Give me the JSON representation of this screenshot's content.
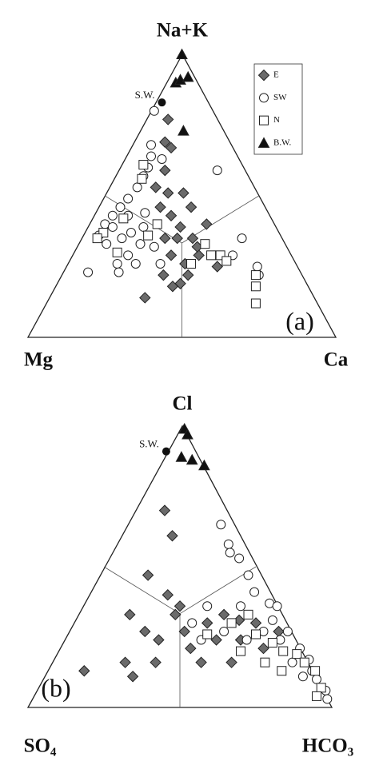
{
  "chart_data": [
    {
      "type": "ternary",
      "top_label": "Na+K",
      "left_label": "Mg",
      "right_label": "Ca",
      "panel_label": "(a)",
      "legend": "top-right",
      "annotations": [
        {
          "text": "S.W.",
          "top": 83,
          "right": 2
        }
      ],
      "series": [
        {
          "name": "E",
          "marker": "diamond",
          "color": "#6b6b6b",
          "top": [
            77,
            69,
            67,
            59,
            51,
            46,
            43,
            39,
            35,
            35,
            29,
            26,
            22,
            19,
            18,
            14,
            46,
            40,
            25,
            29,
            51,
            53,
            35,
            22,
            32
          ],
          "right": [
            7,
            10,
            13,
            15,
            20,
            20,
            25,
            30,
            36,
            27,
            32,
            38,
            33,
            40,
            38,
            31,
            30,
            38,
            49,
            41,
            25,
            15,
            31,
            41,
            39
          ]
        },
        {
          "name": "SW",
          "marker": "circle",
          "color": "#ffffff",
          "top": [
            68,
            64,
            60,
            57,
            53,
            49,
            46,
            43,
            40,
            36,
            33,
            35,
            37,
            33,
            29,
            26,
            23,
            23,
            26,
            32,
            26,
            44,
            43,
            63,
            59,
            35,
            29,
            25,
            22,
            80,
            39,
            39
          ],
          "right": [
            6,
            8,
            9,
            9,
            9,
            8,
            7,
            6,
            5,
            5,
            9,
            13,
            15,
            20,
            18,
            16,
            8,
            18,
            22,
            25,
            30,
            16,
            11,
            12,
            32,
            52,
            52,
            62,
            64,
            1,
            18,
            8
          ]
        },
        {
          "name": "N",
          "marker": "square",
          "color": "#ffffff",
          "top": [
            61,
            56,
            42,
            37,
            35,
            30,
            36,
            26,
            33,
            29,
            29,
            27,
            22,
            18,
            12,
            40
          ],
          "right": [
            7,
            9,
            10,
            6,
            5,
            14,
            21,
            40,
            41,
            45,
            48,
            51,
            63,
            65,
            68,
            22
          ]
        },
        {
          "name": "B.W.",
          "marker": "triangle",
          "color": "#111111",
          "top": [
            100,
            90,
            91,
            92,
            73
          ],
          "right": [
            0,
            3,
            4,
            6,
            14
          ]
        }
      ]
    },
    {
      "type": "ternary",
      "top_label": "Cl",
      "left_label": "SO₄",
      "right_label": "HCO₃",
      "panel_label": "(b)",
      "annotations": [
        {
          "text": "S.W.",
          "top": 91,
          "right": 0
        }
      ],
      "series": [
        {
          "marker": "diamond",
          "color": "#6b6b6b",
          "top": [
            70,
            61,
            47,
            40,
            36,
            33,
            27,
            16,
            11,
            13,
            24,
            27,
            30,
            33,
            31,
            30,
            24,
            21,
            21,
            24,
            27,
            16,
            16,
            33,
            16
          ],
          "right": [
            10,
            17,
            16,
            26,
            32,
            17,
            25,
            24,
            29,
            12,
            31,
            38,
            44,
            48,
            54,
            60,
            58,
            67,
            43,
            50,
            69,
            49,
            59,
            32,
            34
          ]
        },
        {
          "marker": "circle",
          "color": "#ffffff",
          "top": [
            65,
            58,
            55,
            53,
            47,
            41,
            37,
            36,
            31,
            24,
            27,
            21,
            17,
            13,
            10,
            6,
            3,
            36,
            27,
            36,
            24,
            16,
            11,
            27,
            24,
            30
          ],
          "right": [
            31,
            37,
            39,
            43,
            49,
            54,
            61,
            64,
            65,
            71,
            72,
            79,
            84,
            87,
            90,
            95,
            97,
            52,
            51,
            41,
            60,
            79,
            85,
            64,
            45,
            39
          ]
        },
        {
          "marker": "square",
          "color": "#ffffff",
          "top": [
            26,
            30,
            33,
            26,
            23,
            20,
            19,
            16,
            13,
            7,
            16,
            20,
            13,
            4
          ],
          "right": [
            46,
            52,
            56,
            62,
            69,
            74,
            79,
            83,
            88,
            93,
            70,
            60,
            77,
            93
          ]
        },
        {
          "marker": "triangle",
          "color": "#111111",
          "top": [
            99,
            97,
            89,
            88,
            86
          ],
          "right": [
            2,
            4,
            6,
            10,
            15
          ]
        }
      ]
    }
  ]
}
